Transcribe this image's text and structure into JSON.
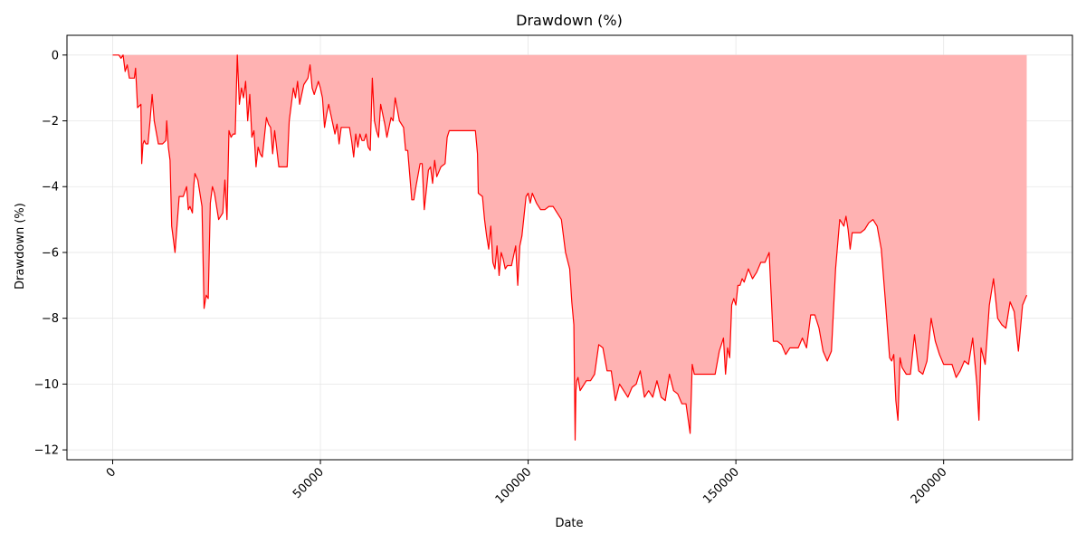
{
  "chart_data": {
    "type": "area",
    "title": "Drawdown (%)",
    "xlabel": "Date",
    "ylabel": "Drawdown (%)",
    "xlim": [
      -11000,
      231000
    ],
    "ylim": [
      -12.3,
      0.6
    ],
    "xticks": [
      0,
      50000,
      100000,
      150000,
      200000
    ],
    "xtick_labels": [
      "0",
      "50000",
      "100000",
      "150000",
      "200000"
    ],
    "yticks": [
      0,
      -2,
      -4,
      -6,
      -8,
      -10,
      -12
    ],
    "ytick_labels": [
      "0",
      "−2",
      "−4",
      "−6",
      "−8",
      "−10",
      "−12"
    ],
    "grid": true,
    "colors": {
      "line": "#ff0000",
      "fill": "#ffb2b2",
      "grid": "#e6e6e6"
    },
    "series": [
      {
        "x": [
          0,
          1500,
          2000,
          2500,
          3000,
          3500,
          4000,
          5200,
          5500,
          6000,
          6800,
          7000,
          7300,
          7600,
          8000,
          8500,
          9000,
          9500,
          10000,
          11000,
          12000,
          12800,
          13000,
          13400,
          13800,
          14200,
          14500,
          15000,
          16000,
          17000,
          17800,
          18200,
          18600,
          19200,
          19500,
          19800,
          20500,
          21500,
          22000,
          22500,
          23000,
          23500,
          24000,
          24500,
          25500,
          26500,
          27000,
          27500,
          28000,
          28500,
          29000,
          29500,
          30000,
          30500,
          31000,
          31500,
          32000,
          32500,
          33000,
          33500,
          34000,
          34500,
          35000,
          35500,
          36000,
          36500,
          37000,
          37500,
          38000,
          38500,
          39000,
          40000,
          42000,
          42500,
          43000,
          43500,
          44000,
          44500,
          45000,
          46000,
          47000,
          47500,
          48000,
          48500,
          49000,
          49500,
          50000,
          50500,
          51000,
          51500,
          52000,
          53000,
          53500,
          54000,
          54500,
          55000,
          56000,
          57000,
          57500,
          58000,
          58500,
          59000,
          59500,
          60000,
          60500,
          61000,
          61500,
          62000,
          62500,
          63000,
          63500,
          64000,
          64500,
          65000,
          65500,
          66000,
          67000,
          67500,
          68000,
          69000,
          70000,
          70500,
          71000,
          72000,
          72500,
          73000,
          74000,
          74500,
          75000,
          76000,
          76500,
          77000,
          77500,
          78000,
          79000,
          80000,
          80500,
          81000,
          86500,
          87000,
          87300,
          87800,
          88000,
          89000,
          89500,
          90000,
          90500,
          91000,
          91500,
          92000,
          92500,
          93000,
          93500,
          94000,
          94500,
          95000,
          96000,
          97000,
          97500,
          98000,
          98500,
          99000,
          99500,
          100000,
          100500,
          101000,
          102000,
          103000,
          104000,
          105000,
          106000,
          107000,
          108000,
          109000,
          110000,
          110500,
          111000,
          111300,
          111500,
          111700,
          112000,
          112500,
          113000,
          114000,
          115000,
          116000,
          117000,
          118000,
          119000,
          120000,
          121000,
          122000,
          123000,
          124000,
          125000,
          126000,
          127000,
          128000,
          129000,
          130000,
          131000,
          132000,
          133000,
          134000,
          135000,
          136000,
          137000,
          138000,
          139000,
          139500,
          140000,
          141000,
          142000,
          143000,
          144000,
          145000,
          146000,
          147000,
          147500,
          148000,
          148500,
          149000,
          149500,
          150000,
          150500,
          151000,
          151500,
          152000,
          153000,
          154000,
          155000,
          156000,
          157000,
          158000,
          159000,
          160000,
          161000,
          162000,
          163000,
          164000,
          165000,
          166000,
          167000,
          168000,
          169000,
          170000,
          171000,
          172000,
          173000,
          174000,
          175000,
          176000,
          176500,
          177000,
          177500,
          178000,
          179000,
          180000,
          181000,
          182000,
          183000,
          184000,
          185000,
          186000,
          187000,
          187500,
          188000,
          188500,
          189000,
          189500,
          190000,
          191000,
          192000,
          193000,
          194000,
          195000,
          196000,
          197000,
          198000,
          199000,
          200000,
          201000,
          202000,
          203000,
          204000,
          205000,
          206000,
          207000,
          208000,
          208500,
          209000,
          210000,
          211000,
          212000,
          213000,
          214000,
          215000,
          216000,
          217000,
          218000,
          219000,
          220000
        ],
        "y": [
          0,
          0,
          -0.1,
          0,
          -0.5,
          -0.3,
          -0.7,
          -0.7,
          -0.4,
          -1.6,
          -1.5,
          -3.3,
          -2.7,
          -2.6,
          -2.7,
          -2.7,
          -2.0,
          -1.2,
          -2.0,
          -2.7,
          -2.7,
          -2.6,
          -2.0,
          -2.8,
          -3.2,
          -5.2,
          -5.5,
          -6.0,
          -4.3,
          -4.3,
          -4.0,
          -4.7,
          -4.6,
          -4.8,
          -4.0,
          -3.6,
          -3.8,
          -4.6,
          -7.7,
          -7.3,
          -7.4,
          -4.5,
          -4.0,
          -4.2,
          -5.0,
          -4.8,
          -3.8,
          -5.0,
          -2.3,
          -2.5,
          -2.4,
          -2.4,
          0,
          -1.5,
          -1.0,
          -1.3,
          -0.8,
          -2.0,
          -1.2,
          -2.5,
          -2.3,
          -3.4,
          -2.8,
          -3.0,
          -3.1,
          -2.5,
          -1.9,
          -2.1,
          -2.2,
          -3.0,
          -2.3,
          -3.4,
          -3.4,
          -2.0,
          -1.5,
          -1.0,
          -1.3,
          -0.8,
          -1.5,
          -0.9,
          -0.7,
          -0.3,
          -1.0,
          -1.2,
          -1.0,
          -0.8,
          -1.0,
          -1.3,
          -2.2,
          -1.8,
          -1.5,
          -2.1,
          -2.4,
          -2.1,
          -2.7,
          -2.2,
          -2.2,
          -2.2,
          -2.6,
          -3.1,
          -2.4,
          -2.8,
          -2.4,
          -2.6,
          -2.6,
          -2.4,
          -2.8,
          -2.9,
          -0.7,
          -2.0,
          -2.3,
          -2.5,
          -1.5,
          -1.8,
          -2.1,
          -2.5,
          -1.9,
          -2.0,
          -1.3,
          -2.0,
          -2.2,
          -2.9,
          -2.9,
          -4.4,
          -4.4,
          -4.0,
          -3.3,
          -3.3,
          -4.7,
          -3.5,
          -3.4,
          -3.9,
          -3.2,
          -3.7,
          -3.4,
          -3.3,
          -2.5,
          -2.3,
          -2.3,
          -2.3,
          -2.3,
          -3.0,
          -4.2,
          -4.3,
          -5.0,
          -5.5,
          -5.9,
          -5.2,
          -6.3,
          -6.5,
          -5.8,
          -6.7,
          -6.0,
          -6.2,
          -6.5,
          -6.4,
          -6.4,
          -5.8,
          -7.0,
          -5.8,
          -5.5,
          -4.9,
          -4.3,
          -4.2,
          -4.5,
          -4.2,
          -4.5,
          -4.7,
          -4.7,
          -4.6,
          -4.6,
          -4.8,
          -5.0,
          -6.0,
          -6.5,
          -7.5,
          -8.2,
          -11.7,
          -10.2,
          -9.9,
          -9.8,
          -10.2,
          -10.1,
          -9.9,
          -9.9,
          -9.7,
          -8.8,
          -8.9,
          -9.6,
          -9.6,
          -10.5,
          -10.0,
          -10.2,
          -10.4,
          -10.1,
          -10.0,
          -9.6,
          -10.4,
          -10.2,
          -10.4,
          -9.9,
          -10.4,
          -10.5,
          -9.7,
          -10.2,
          -10.3,
          -10.6,
          -10.6,
          -11.5,
          -9.4,
          -9.7,
          -9.7,
          -9.7,
          -9.7,
          -9.7,
          -9.7,
          -9.0,
          -8.6,
          -9.7,
          -8.9,
          -9.2,
          -7.6,
          -7.4,
          -7.6,
          -7.0,
          -7.0,
          -6.8,
          -6.9,
          -6.5,
          -6.8,
          -6.6,
          -6.3,
          -6.3,
          -6.0,
          -8.7,
          -8.7,
          -8.8,
          -9.1,
          -8.9,
          -8.9,
          -8.9,
          -8.6,
          -8.9,
          -7.9,
          -7.9,
          -8.3,
          -9.0,
          -9.3,
          -9.0,
          -6.5,
          -5.0,
          -5.2,
          -4.9,
          -5.3,
          -5.9,
          -5.4,
          -5.4,
          -5.4,
          -5.3,
          -5.1,
          -5.0,
          -5.2,
          -5.9,
          -7.5,
          -9.2,
          -9.3,
          -9.1,
          -10.5,
          -11.1,
          -9.2,
          -9.5,
          -9.7,
          -9.7,
          -8.5,
          -9.6,
          -9.7,
          -9.3,
          -8.0,
          -8.7,
          -9.1,
          -9.4,
          -9.4,
          -9.4,
          -9.8,
          -9.6,
          -9.3,
          -9.4,
          -8.6,
          -10.0,
          -11.1,
          -8.9,
          -9.4,
          -7.6,
          -6.8,
          -8.0,
          -8.2,
          -8.3,
          -7.5,
          -7.8,
          -9.0,
          -7.6,
          -7.3
        ]
      }
    ]
  }
}
